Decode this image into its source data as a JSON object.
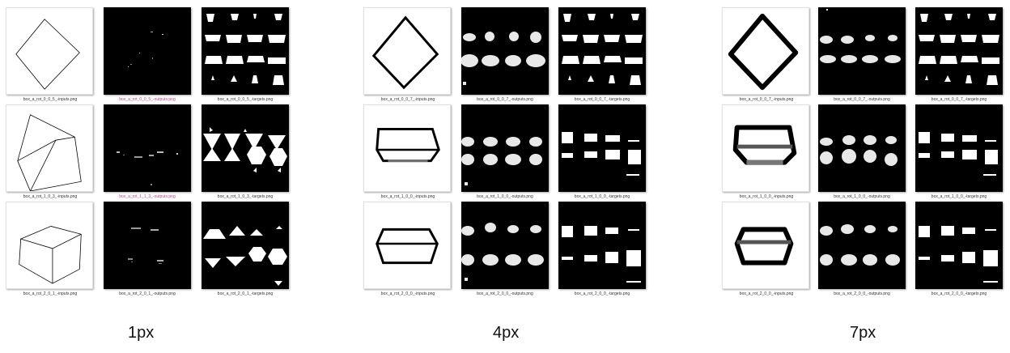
{
  "groups": [
    {
      "label": "1px",
      "rows": [
        {
          "inputs": "box_a_rot_0_0_5_-inputs.png",
          "outputs": "box_a_rot_0_0_5_-outputs.png",
          "targets": "box_a_rot_0_0_5_-targets.png"
        },
        {
          "inputs": "box_a_rot_1_0_3_-inputs.png",
          "outputs": "box_a_rot_1_1_3_-outputs.png",
          "targets": "box_a_rot_1_0_3_-targets.png"
        },
        {
          "inputs": "box_a_rot_2_0_1_-inputs.png",
          "outputs": "box_a_rot_2_0_1_-outputs.png",
          "targets": "box_a_rot_2_0_1_-targets.png"
        }
      ]
    },
    {
      "label": "4px",
      "rows": [
        {
          "inputs": "box_a_rot_0_0_7_-inputs.png",
          "outputs": "box_a_rot_0_0_7_-outputs.png",
          "targets": "box_a_rot_0_0_7_-targets.png"
        },
        {
          "inputs": "box_a_rot_1_0_0_-inputs.png",
          "outputs": "box_a_rot_1_0_0_-outputs.png",
          "targets": "box_a_rot_1_0_0_-targets.png"
        },
        {
          "inputs": "box_a_rot_2_0_0_-inputs.png",
          "outputs": "box_a_rot_2_0_0_-outputs.png",
          "targets": "box_a_rot_2_0_0_-targets.png"
        }
      ]
    },
    {
      "label": "7px",
      "rows": [
        {
          "inputs": "box_a_rot_0_0_7_-inputs.png",
          "outputs": "box_a_rot_0_0_7_-outputs.png",
          "targets": "box_a_rot_0_0_7_-targets.png"
        },
        {
          "inputs": "box_a_rot_1_0_0_-inputs.png",
          "outputs": "box_a_rot_1_0_0_-outputs.png",
          "targets": "box_a_rot_1_0_0_-targets.png"
        },
        {
          "inputs": "box_a_rot_2_0_0_-inputs.png",
          "outputs": "box_a_rot_2_0_0_-outputs.png",
          "targets": "box_a_rot_2_0_0_-targets.png"
        }
      ]
    }
  ],
  "colors": {
    "background": "#ffffff",
    "tile_dark": "#000000",
    "caption_text": "#333333",
    "caption_selected_text": "#c0408a",
    "edge_line": "#000000",
    "edge_line_gray": "#6e6e6e"
  }
}
